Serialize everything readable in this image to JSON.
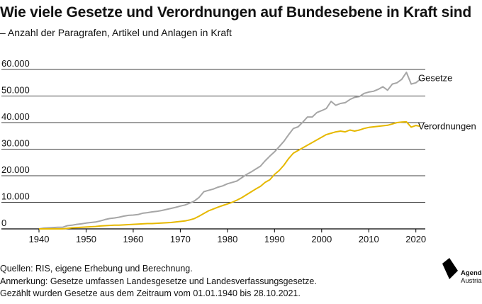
{
  "header": {
    "title": "Wie viele Gesetze und Verordnungen auf Bundesebene in Kraft sind",
    "subtitle": "– Anzahl der Paragrafen, Artikel und Anlagen in Kraft"
  },
  "footer": {
    "source": "Quellen: RIS, eigene Erhebung und Berechnung.",
    "note": "Anmerkung: Gesetze umfassen Landesgesetze und Landesverfassungsgesetze.",
    "range": "Gezählt wurden Gesetze aus dem Zeitraum vom 01.01.1940 bis 28.10.2021."
  },
  "logo": {
    "name": "Agenda",
    "sub": "Austria",
    "icon": "agenda-austria-logo"
  },
  "colors": {
    "gesetze": "#a6a6a6",
    "verordnungen": "#e6b800",
    "axis": "#000000",
    "grid": "#000000"
  },
  "chart_data": {
    "type": "line",
    "title": "",
    "xlabel": "",
    "ylabel": "",
    "xlim": [
      1940,
      2022
    ],
    "ylim": [
      0,
      60000
    ],
    "x_ticks": [
      1940,
      1950,
      1960,
      1970,
      1980,
      1990,
      2000,
      2010,
      2020
    ],
    "x_tick_labels": [
      "1940",
      "1950",
      "1960",
      "1970",
      "1980",
      "1990",
      "2000",
      "2010",
      "2020"
    ],
    "y_ticks": [
      0,
      10000,
      20000,
      30000,
      40000,
      50000,
      60000
    ],
    "y_tick_labels": [
      "0",
      "10.000",
      "20.000",
      "30.000",
      "40.000",
      "50.000",
      "60.000"
    ],
    "grid": true,
    "legend": "direct labels at line ends (right)",
    "series": [
      {
        "name": "Gesetze",
        "color": "#a6a6a6",
        "x": [
          1940,
          1941,
          1942,
          1943,
          1944,
          1945,
          1946,
          1947,
          1948,
          1949,
          1950,
          1951,
          1952,
          1953,
          1954,
          1955,
          1956,
          1957,
          1958,
          1959,
          1960,
          1961,
          1962,
          1963,
          1964,
          1965,
          1966,
          1967,
          1968,
          1969,
          1970,
          1971,
          1972,
          1973,
          1974,
          1975,
          1976,
          1977,
          1978,
          1979,
          1980,
          1981,
          1982,
          1983,
          1984,
          1985,
          1986,
          1987,
          1988,
          1989,
          1990,
          1991,
          1992,
          1993,
          1994,
          1995,
          1996,
          1997,
          1998,
          1999,
          2000,
          2001,
          2002,
          2003,
          2004,
          2005,
          2006,
          2007,
          2008,
          2009,
          2010,
          2011,
          2012,
          2013,
          2014,
          2015,
          2016,
          2017,
          2018,
          2019,
          2020,
          2021
        ],
        "values": [
          0,
          300,
          400,
          500,
          600,
          600,
          1200,
          1400,
          1700,
          1900,
          2200,
          2400,
          2600,
          3000,
          3500,
          3900,
          4100,
          4400,
          4800,
          5100,
          5200,
          5400,
          5900,
          6100,
          6400,
          6600,
          6900,
          7300,
          7700,
          8100,
          8600,
          9000,
          9700,
          10500,
          11900,
          14000,
          14500,
          15000,
          15700,
          16200,
          17000,
          17500,
          18000,
          19200,
          20400,
          21400,
          22500,
          23600,
          25600,
          27400,
          29000,
          31000,
          33000,
          35500,
          37800,
          38400,
          40200,
          42100,
          42100,
          43800,
          44500,
          45300,
          48000,
          46500,
          47200,
          47500,
          48700,
          49500,
          49800,
          51000,
          51500,
          51800,
          52500,
          53500,
          52200,
          54500,
          55000,
          56300,
          58900,
          54500,
          55000,
          56400
        ]
      },
      {
        "name": "Verordnungen",
        "color": "#e6b800",
        "x": [
          1940,
          1941,
          1942,
          1943,
          1944,
          1945,
          1946,
          1947,
          1948,
          1949,
          1950,
          1951,
          1952,
          1953,
          1954,
          1955,
          1956,
          1957,
          1958,
          1959,
          1960,
          1961,
          1962,
          1963,
          1964,
          1965,
          1966,
          1967,
          1968,
          1969,
          1970,
          1971,
          1972,
          1973,
          1974,
          1975,
          1976,
          1977,
          1978,
          1979,
          1980,
          1981,
          1982,
          1983,
          1984,
          1985,
          1986,
          1987,
          1988,
          1989,
          1990,
          1991,
          1992,
          1993,
          1994,
          1995,
          1996,
          1997,
          1998,
          1999,
          2000,
          2001,
          2002,
          2003,
          2004,
          2005,
          2006,
          2007,
          2008,
          2009,
          2010,
          2011,
          2012,
          2013,
          2014,
          2015,
          2016,
          2017,
          2018,
          2019,
          2020,
          2021
        ],
        "values": [
          0,
          0,
          0,
          0,
          0,
          0,
          200,
          400,
          500,
          600,
          700,
          800,
          900,
          1100,
          1200,
          1300,
          1400,
          1400,
          1500,
          1600,
          1700,
          1800,
          1900,
          2000,
          2000,
          2100,
          2200,
          2300,
          2400,
          2600,
          2800,
          3000,
          3400,
          3900,
          4800,
          5800,
          6800,
          7500,
          8200,
          8800,
          9400,
          10000,
          10800,
          11700,
          12800,
          13900,
          15000,
          16000,
          17500,
          18500,
          20500,
          22000,
          24000,
          26500,
          28500,
          29500,
          30500,
          31500,
          32500,
          33500,
          34500,
          35500,
          36000,
          36500,
          36800,
          36500,
          37200,
          36800,
          37200,
          37800,
          38200,
          38400,
          38600,
          38800,
          39000,
          39500,
          40000,
          40200,
          40300,
          38300,
          38900,
          38600
        ]
      }
    ]
  }
}
